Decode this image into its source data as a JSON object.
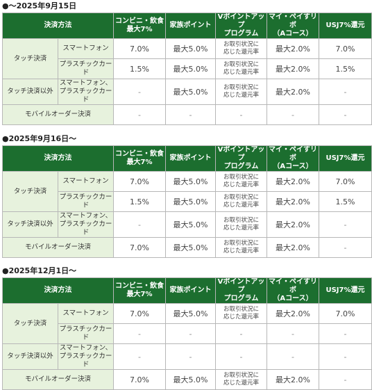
{
  "headers": [
    "決済方法",
    "コンビニ・飲食\n最大7%",
    "家族ポイント",
    "Vポイントアップ\nプログラム",
    "マイ・ペイすリボ\n（Aコース）",
    "USJ7%還元"
  ],
  "row_labels": {
    "touch": "タッチ決済",
    "smartphone": "スマートフォン",
    "plastic": "プラスチックカード",
    "non_touch": "タッチ決済以外",
    "non_touch_sub": "スマートフォン、\nプラスチックカード",
    "mobile_order": "モバイルオーダー決済"
  },
  "sections": [
    {
      "title": "●～2025年9月15日",
      "rows": {
        "smartphone": [
          "7.0%",
          "最大5.0%",
          "お取引状況に\n応じた還元率",
          "最大2.0%",
          "7.0%"
        ],
        "plastic": [
          "1.5%",
          "最大5.0%",
          "お取引状況に\n応じた還元率",
          "最大2.0%",
          "1.5%"
        ],
        "non_touch": [
          "-",
          "最大5.0%",
          "お取引状況に\n応じた還元率",
          "最大2.0%",
          "-"
        ],
        "mobile_order": [
          "-",
          "-",
          "-",
          "-",
          "-"
        ]
      }
    },
    {
      "title": "●2025年9月16日～",
      "rows": {
        "smartphone": [
          "7.0%",
          "最大5.0%",
          "お取引状況に\n応じた還元率",
          "最大2.0%",
          "7.0%"
        ],
        "plastic": [
          "1.5%",
          "最大5.0%",
          "お取引状況に\n応じた還元率",
          "最大2.0%",
          "1.5%"
        ],
        "non_touch": [
          "-",
          "最大5.0%",
          "お取引状況に\n応じた還元率",
          "最大2.0%",
          "-"
        ],
        "mobile_order": [
          "7.0%",
          "最大5.0%",
          "お取引状況に\n応じた還元率",
          "最大2.0%",
          "-"
        ]
      }
    },
    {
      "title": "●2025年12月1日～",
      "rows": {
        "smartphone": [
          "7.0%",
          "最大5.0%",
          "お取引状況に\n応じた還元率",
          "最大2.0%",
          "7.0%"
        ],
        "plastic": [
          "-",
          "-",
          "-",
          "-",
          "-"
        ],
        "non_touch": [
          "-",
          "-",
          "-",
          "-",
          "-"
        ],
        "mobile_order": [
          "7.0%",
          "最大5.0%",
          "お取引状況に\n応じた還元率",
          "最大2.0%",
          "-"
        ]
      }
    }
  ]
}
